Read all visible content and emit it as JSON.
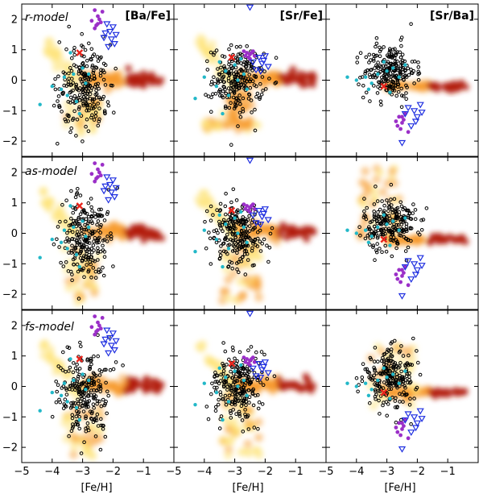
{
  "chart_data": {
    "type": "scatter",
    "layout": "3x3 grid of panels with shared axes",
    "xlabel": "[Fe/H]",
    "xlim": [
      -5,
      0
    ],
    "ylim": [
      -2.5,
      2.5
    ],
    "x_ticks": [
      -5,
      -4,
      -3,
      -2,
      -1
    ],
    "x_tick_labels": [
      "−5",
      "−4",
      "−3",
      "−2",
      "−1"
    ],
    "y_ticks": [
      -2,
      -1,
      0,
      1,
      2
    ],
    "y_tick_labels": [
      "−2",
      "−1",
      "0",
      "1",
      "2"
    ],
    "row_labels": [
      "r-model",
      "as-model",
      "fs-model"
    ],
    "column_labels": [
      "[Ba/Fe]",
      "[Sr/Fe]",
      "[Sr/Ba]"
    ],
    "series_colors": {
      "observed_stars": "#000000",
      "cyan_stars": "#22b8c8",
      "purple_stars": "#9b2fc8",
      "upper_limits": "#1f2fe0",
      "reference_star": "#e8241c"
    },
    "reference_star": {
      "ba_fe": [
        -3.1,
        0.9
      ],
      "sr_fe": [
        -3.1,
        0.75
      ],
      "sr_ba": [
        -3.1,
        -0.2
      ]
    },
    "purple_stars": {
      "ba_fe": [
        [
          -2.6,
          2.3
        ],
        [
          -2.5,
          2.1
        ],
        [
          -2.4,
          1.9
        ],
        [
          -2.55,
          1.8
        ],
        [
          -2.7,
          1.95
        ],
        [
          -2.45,
          2.0
        ],
        [
          -2.6,
          1.7
        ],
        [
          -2.35,
          2.25
        ],
        [
          -2.5,
          1.85
        ]
      ],
      "sr_fe": [
        [
          -2.7,
          0.95
        ],
        [
          -2.6,
          0.9
        ],
        [
          -2.5,
          0.85
        ],
        [
          -2.4,
          0.95
        ],
        [
          -2.55,
          0.75
        ],
        [
          -2.65,
          0.8
        ],
        [
          -2.45,
          0.9
        ],
        [
          -2.5,
          0.7
        ],
        [
          -2.35,
          0.8
        ]
      ],
      "sr_ba": [
        [
          -2.6,
          -1.2
        ],
        [
          -2.5,
          -1.4
        ],
        [
          -2.4,
          -1.1
        ],
        [
          -2.55,
          -1.6
        ],
        [
          -2.45,
          -1.3
        ],
        [
          -2.65,
          -1.5
        ],
        [
          -2.3,
          -1.7
        ],
        [
          -2.5,
          -1.2
        ],
        [
          -2.7,
          -1.35
        ]
      ]
    },
    "upper_limits": {
      "ba_fe": [
        [
          -2.2,
          1.85
        ],
        [
          -2.1,
          1.6
        ],
        [
          -2.0,
          1.75
        ],
        [
          -1.9,
          1.5
        ],
        [
          -2.3,
          1.4
        ],
        [
          -2.05,
          1.35
        ],
        [
          -1.95,
          1.2
        ],
        [
          -2.25,
          1.55
        ],
        [
          -2.15,
          1.1
        ]
      ],
      "sr_fe": [
        [
          -2.5,
          2.4
        ],
        [
          -2.2,
          0.75
        ],
        [
          -2.1,
          0.55
        ],
        [
          -2.0,
          0.8
        ],
        [
          -1.9,
          0.45
        ],
        [
          -2.3,
          0.35
        ],
        [
          -2.05,
          0.65
        ],
        [
          -2.4,
          0.6
        ],
        [
          -2.15,
          0.3
        ]
      ],
      "sr_ba": [
        [
          -2.3,
          -0.9
        ],
        [
          -2.1,
          -1.0
        ],
        [
          -2.0,
          -1.2
        ],
        [
          -1.9,
          -0.8
        ],
        [
          -2.2,
          -1.5
        ],
        [
          -2.05,
          -1.35
        ],
        [
          -2.4,
          -1.1
        ],
        [
          -2.5,
          -2.05
        ],
        [
          -1.85,
          -1.05
        ]
      ]
    },
    "cyan_stars": {
      "ba_fe": [
        [
          -4.4,
          -0.8
        ],
        [
          -4.0,
          -0.2
        ],
        [
          -3.6,
          0.1
        ],
        [
          -3.5,
          -0.5
        ],
        [
          -3.3,
          0.2
        ],
        [
          -3.2,
          -0.7
        ],
        [
          -3.0,
          0.4
        ],
        [
          -2.9,
          -0.1
        ],
        [
          -2.8,
          0.2
        ],
        [
          -3.4,
          0.9
        ],
        [
          -3.7,
          -0.3
        ],
        [
          -3.1,
          -1.1
        ]
      ],
      "sr_fe": [
        [
          -4.3,
          -0.6
        ],
        [
          -4.0,
          0.1
        ],
        [
          -3.6,
          -0.2
        ],
        [
          -3.3,
          0.3
        ],
        [
          -3.2,
          -0.5
        ],
        [
          -3.0,
          0.5
        ],
        [
          -2.9,
          0.0
        ],
        [
          -2.7,
          0.2
        ],
        [
          -3.5,
          0.6
        ],
        [
          -2.6,
          -0.3
        ],
        [
          -3.4,
          -1.1
        ],
        [
          -2.8,
          0.7
        ]
      ],
      "sr_ba": [
        [
          -4.3,
          0.1
        ],
        [
          -4.0,
          0.0
        ],
        [
          -3.7,
          0.1
        ],
        [
          -3.5,
          -0.1
        ],
        [
          -3.3,
          0.2
        ],
        [
          -3.0,
          0.3
        ],
        [
          -2.8,
          0.4
        ],
        [
          -2.6,
          0.1
        ],
        [
          -3.6,
          -0.3
        ],
        [
          -3.1,
          0.6
        ],
        [
          -2.9,
          -0.4
        ],
        [
          -2.4,
          0.5
        ]
      ]
    }
  }
}
